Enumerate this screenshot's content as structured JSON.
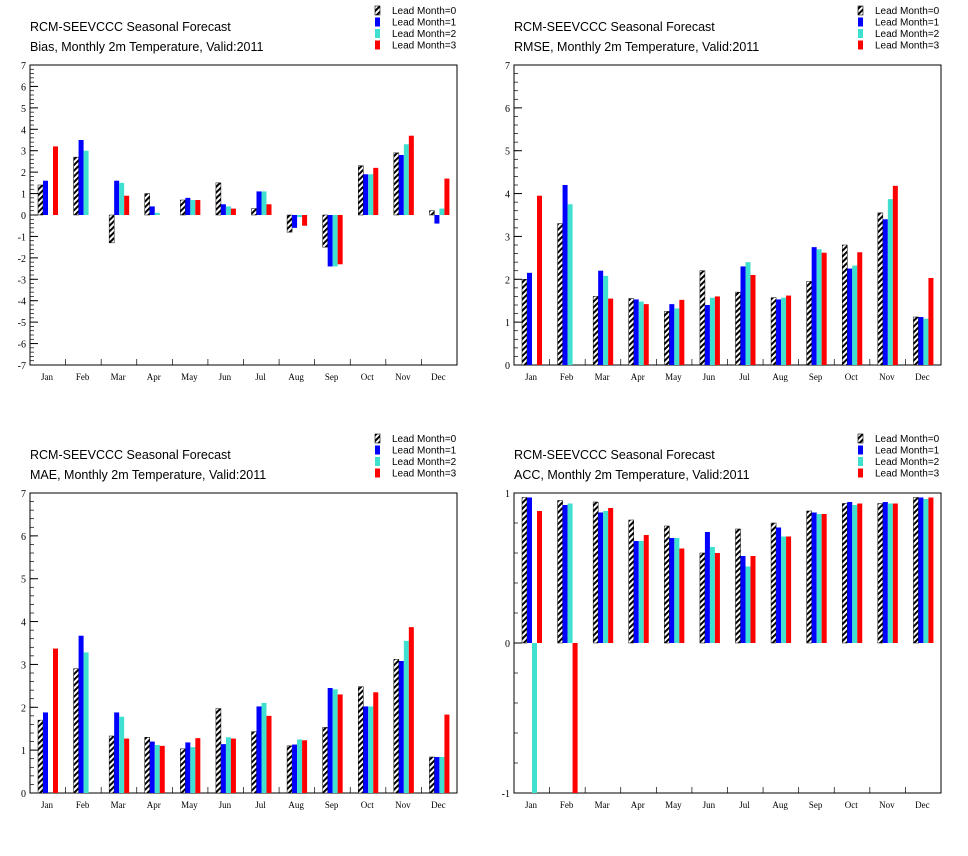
{
  "legend": [
    "Lead Month=0",
    "Lead Month=1",
    "Lead Month=2",
    "Lead Month=3"
  ],
  "colors": {
    "lead0_stripe": "#000000",
    "lead1": "#0000ff",
    "lead2": "#40e0d0",
    "lead3": "#ff0000"
  },
  "chart_data": [
    {
      "type": "bar",
      "title": "RCM-SEEVCCC Seasonal Forecast",
      "subtitle": "Bias, Monthly 2m Temperature, Valid:2011",
      "categories": [
        "Jan",
        "Feb",
        "Mar",
        "Apr",
        "May",
        "Jun",
        "Jul",
        "Aug",
        "Sep",
        "Oct",
        "Nov",
        "Dec"
      ],
      "ylim": [
        -7,
        7
      ],
      "yticks": [
        -7,
        -6,
        -5,
        -4,
        -3,
        -2,
        -1,
        0,
        1,
        2,
        3,
        4,
        5,
        6,
        7
      ],
      "series": [
        {
          "name": "Lead Month=0",
          "values": [
            1.4,
            2.7,
            -1.3,
            1.0,
            0.7,
            1.5,
            0.3,
            -0.8,
            -1.5,
            2.3,
            2.9,
            0.2
          ]
        },
        {
          "name": "Lead Month=1",
          "values": [
            1.6,
            3.5,
            1.6,
            0.4,
            0.8,
            0.5,
            1.1,
            -0.6,
            -2.4,
            1.9,
            2.8,
            -0.4
          ]
        },
        {
          "name": "Lead Month=2",
          "values": [
            0.0,
            3.0,
            1.5,
            0.1,
            0.7,
            0.4,
            1.1,
            -0.1,
            -2.4,
            1.9,
            3.3,
            0.3
          ]
        },
        {
          "name": "Lead Month=3",
          "values": [
            3.2,
            0.0,
            0.9,
            0.0,
            0.7,
            0.3,
            0.5,
            -0.5,
            -2.3,
            2.2,
            3.7,
            1.7
          ]
        }
      ]
    },
    {
      "type": "bar",
      "title": "RCM-SEEVCCC Seasonal Forecast",
      "subtitle": "RMSE, Monthly 2m Temperature, Valid:2011",
      "categories": [
        "Jan",
        "Feb",
        "Mar",
        "Apr",
        "May",
        "Jun",
        "Jul",
        "Aug",
        "Sep",
        "Oct",
        "Nov",
        "Dec"
      ],
      "ylim": [
        0,
        7
      ],
      "yticks": [
        0,
        1,
        2,
        3,
        4,
        5,
        6,
        7
      ],
      "series": [
        {
          "name": "Lead Month=0",
          "values": [
            2.0,
            3.3,
            1.6,
            1.55,
            1.25,
            2.2,
            1.7,
            1.57,
            1.95,
            2.8,
            3.55,
            1.12
          ]
        },
        {
          "name": "Lead Month=1",
          "values": [
            2.15,
            4.2,
            2.2,
            1.53,
            1.42,
            1.4,
            2.3,
            1.53,
            2.75,
            2.25,
            3.4,
            1.12
          ]
        },
        {
          "name": "Lead Month=2",
          "values": [
            0.0,
            3.75,
            2.08,
            1.48,
            1.32,
            1.57,
            2.4,
            1.57,
            2.7,
            2.32,
            3.87,
            1.08
          ]
        },
        {
          "name": "Lead Month=3",
          "values": [
            3.95,
            0.0,
            1.55,
            1.42,
            1.52,
            1.6,
            2.1,
            1.62,
            2.62,
            2.63,
            4.18,
            2.03
          ]
        }
      ]
    },
    {
      "type": "bar",
      "title": "RCM-SEEVCCC Seasonal Forecast",
      "subtitle": "MAE, Monthly 2m Temperature, Valid:2011",
      "categories": [
        "Jan",
        "Feb",
        "Mar",
        "Apr",
        "May",
        "Jun",
        "Jul",
        "Aug",
        "Sep",
        "Oct",
        "Nov",
        "Dec"
      ],
      "ylim": [
        0,
        7
      ],
      "yticks": [
        0,
        1,
        2,
        3,
        4,
        5,
        6,
        7
      ],
      "series": [
        {
          "name": "Lead Month=0",
          "values": [
            1.7,
            2.9,
            1.33,
            1.3,
            1.03,
            1.97,
            1.43,
            1.1,
            1.53,
            2.48,
            3.12,
            0.84
          ]
        },
        {
          "name": "Lead Month=1",
          "values": [
            1.88,
            3.67,
            1.88,
            1.2,
            1.18,
            1.14,
            2.02,
            1.13,
            2.45,
            2.02,
            3.08,
            0.84
          ]
        },
        {
          "name": "Lead Month=2",
          "values": [
            0.0,
            3.28,
            1.78,
            1.12,
            1.07,
            1.3,
            2.1,
            1.25,
            2.42,
            2.02,
            3.55,
            0.84
          ]
        },
        {
          "name": "Lead Month=3",
          "values": [
            3.37,
            0.0,
            1.27,
            1.1,
            1.28,
            1.27,
            1.8,
            1.23,
            2.3,
            2.35,
            3.87,
            1.83
          ]
        }
      ]
    },
    {
      "type": "bar",
      "title": "RCM-SEEVCCC Seasonal Forecast",
      "subtitle": "ACC, Monthly 2m Temperature, Valid:2011",
      "categories": [
        "Jan",
        "Feb",
        "Mar",
        "Apr",
        "May",
        "Jun",
        "Jul",
        "Aug",
        "Sep",
        "Oct",
        "Nov",
        "Dec"
      ],
      "ylim": [
        -1,
        1
      ],
      "yticks": [
        -1,
        0,
        1
      ],
      "series": [
        {
          "name": "Lead Month=0",
          "values": [
            0.97,
            0.95,
            0.94,
            0.82,
            0.78,
            0.6,
            0.76,
            0.8,
            0.88,
            0.93,
            0.93,
            0.97
          ]
        },
        {
          "name": "Lead Month=1",
          "values": [
            0.97,
            0.92,
            0.87,
            0.68,
            0.7,
            0.74,
            0.58,
            0.77,
            0.87,
            0.94,
            0.94,
            0.97
          ]
        },
        {
          "name": "Lead Month=2",
          "values": [
            -1.0,
            0.93,
            0.88,
            0.68,
            0.7,
            0.64,
            0.51,
            0.71,
            0.86,
            0.92,
            0.93,
            0.96
          ]
        },
        {
          "name": "Lead Month=3",
          "values": [
            0.88,
            -1.0,
            0.9,
            0.72,
            0.63,
            0.6,
            0.58,
            0.71,
            0.86,
            0.93,
            0.93,
            0.97
          ]
        }
      ]
    }
  ]
}
